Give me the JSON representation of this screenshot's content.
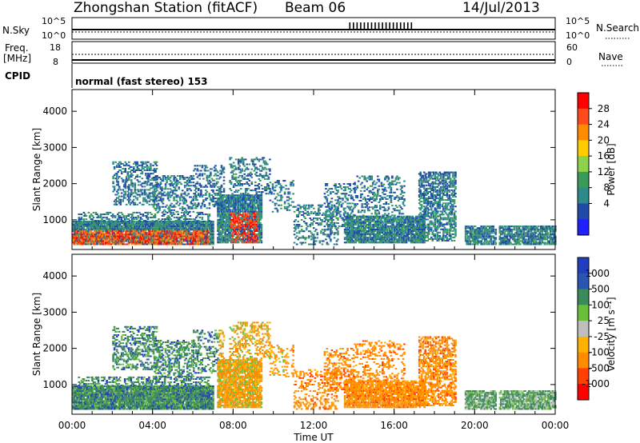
{
  "header": {
    "station": "Zhongshan Station (fitACF)",
    "beam": "Beam 06",
    "date": "14/Jul/2013"
  },
  "strip": {
    "nsky_label": "N.Sky",
    "nsearch_label": "N.Search",
    "noise_ticks_left": [
      "10^5",
      "10^0"
    ],
    "noise_ticks_right": [
      "10^5",
      "10^0"
    ],
    "freq_label_top": "Freq.",
    "freq_label_unit": "[MHz]",
    "freq_ticks": [
      "18",
      "8"
    ],
    "nave_label": "Nave",
    "nave_ticks": [
      "60",
      "0"
    ],
    "cpid_label": "CPID",
    "cpid_text": "normal (fast stereo) 153"
  },
  "chart_data": [
    {
      "type": "heatmap",
      "panel": "power",
      "ylabel": "Slant Range [km]",
      "xlabel": "",
      "y_ticks": [
        1000,
        2000,
        3000,
        4000
      ],
      "ylim": [
        180,
        4600
      ],
      "xlim": [
        0,
        24
      ],
      "colorbar": {
        "label": "Power [dB]",
        "ticks": [
          "28",
          "24",
          "20",
          "16",
          "12",
          "8",
          "4"
        ],
        "colors": [
          "#ff0000",
          "#ff4a1a",
          "#ff8c00",
          "#ffcc00",
          "#8cd24a",
          "#3a9a5a",
          "#2d8a8a",
          "#1f4aa8",
          "#2020ff"
        ]
      }
    },
    {
      "type": "heatmap",
      "panel": "velocity",
      "ylabel": "Slant Range [km]",
      "xlabel": "Time UT",
      "x_ticks": [
        "00:00",
        "04:00",
        "08:00",
        "12:00",
        "16:00",
        "20:00",
        "00:00"
      ],
      "y_ticks": [
        1000,
        2000,
        3000,
        4000
      ],
      "ylim": [
        180,
        4600
      ],
      "xlim": [
        0,
        24
      ],
      "colorbar": {
        "label": "Velocity [m s⁻¹]",
        "ticks": [
          "1000",
          "500",
          "100",
          "25",
          "-25",
          "-100",
          "-500",
          "-1000"
        ],
        "colors": [
          "#1f3fbf",
          "#2a55b0",
          "#3a8a5a",
          "#6abf3a",
          "#bfbfbf",
          "#ffb000",
          "#ff8c00",
          "#ff4000",
          "#ff0000"
        ]
      }
    }
  ]
}
